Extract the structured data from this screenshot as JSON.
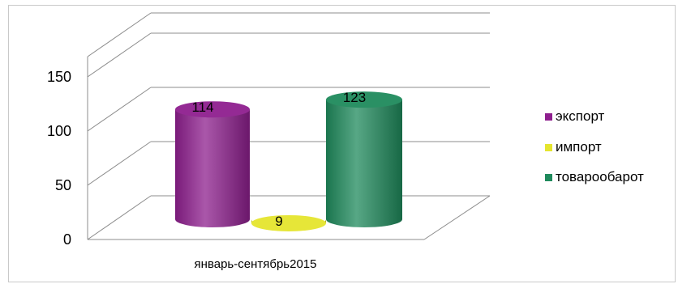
{
  "chart_data": {
    "type": "bar",
    "style": "3d-cylinder",
    "categories": [
      "январь-сентябрь2015"
    ],
    "series": [
      {
        "name": "экспорт",
        "values": [
          114
        ],
        "color": "#8e1f8e"
      },
      {
        "name": "импорт",
        "values": [
          9
        ],
        "color": "#e5e52e"
      },
      {
        "name": "товароoбарот",
        "values": [
          123
        ],
        "color": "#1f8a5c"
      }
    ],
    "data_labels": [
      "114",
      "9",
      "123"
    ],
    "yticks": [
      0,
      50,
      100,
      150
    ],
    "ytick_labels": [
      "0",
      "50",
      "100",
      "150"
    ],
    "ylim": [
      0,
      150
    ],
    "grid": true,
    "legend_position": "right"
  }
}
